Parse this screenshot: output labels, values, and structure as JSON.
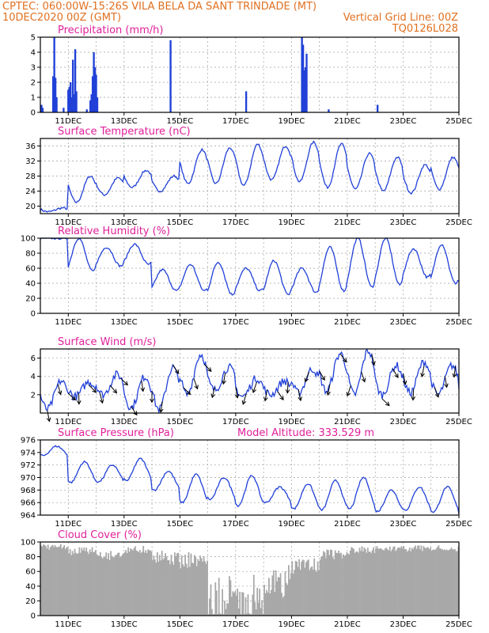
{
  "header": {
    "line1": "CPTEC:   060:00W-15:26S   VILA BELA DA SANT TRINDADE (MT)",
    "line2_left": "10DEC2020 00Z (GMT)",
    "line2_right": "Vertical Grid Line: 00Z",
    "line3_right": "TQ0126L028"
  },
  "colors": {
    "line": "#2040d8",
    "bar": "#2040d8",
    "cloud": "#a8a8a8",
    "title": "#e0209a",
    "header": "#e07020",
    "grid": "#a0a0a0"
  },
  "chart_data": [
    {
      "type": "bar",
      "title": "Precipitation (mm/h)",
      "ylim": [
        0,
        5
      ],
      "yticks": [
        0,
        1,
        2,
        3,
        4,
        5
      ],
      "xticks": [
        "11DEC",
        "13DEC",
        "15DEC",
        "17DEC",
        "19DEC",
        "21DEC",
        "23DEC",
        "25DEC"
      ],
      "time_range_hours": [
        0,
        360
      ],
      "events": [
        {
          "t": 1,
          "v": 0.5
        },
        {
          "t": 2,
          "v": 0.3
        },
        {
          "t": 11,
          "v": 2.4
        },
        {
          "t": 12,
          "v": 5.0
        },
        {
          "t": 13,
          "v": 2.3
        },
        {
          "t": 14,
          "v": 1.0
        },
        {
          "t": 20,
          "v": 0.3
        },
        {
          "t": 24,
          "v": 1.5
        },
        {
          "t": 25,
          "v": 1.7
        },
        {
          "t": 26,
          "v": 2.0
        },
        {
          "t": 27,
          "v": 1.0
        },
        {
          "t": 28,
          "v": 3.5
        },
        {
          "t": 29,
          "v": 1.2
        },
        {
          "t": 30,
          "v": 4.2
        },
        {
          "t": 31,
          "v": 1.4
        },
        {
          "t": 40,
          "v": 0.2
        },
        {
          "t": 43,
          "v": 0.8
        },
        {
          "t": 44,
          "v": 1.2
        },
        {
          "t": 45,
          "v": 2.4
        },
        {
          "t": 46,
          "v": 4.0
        },
        {
          "t": 47,
          "v": 3.0
        },
        {
          "t": 48,
          "v": 2.5
        },
        {
          "t": 49,
          "v": 1.0
        },
        {
          "t": 112,
          "v": 4.8
        },
        {
          "t": 177,
          "v": 1.4
        },
        {
          "t": 225,
          "v": 5.0
        },
        {
          "t": 226,
          "v": 4.5
        },
        {
          "t": 227,
          "v": 2.8
        },
        {
          "t": 228,
          "v": 3.0
        },
        {
          "t": 229,
          "v": 3.9
        },
        {
          "t": 248,
          "v": 0.2
        },
        {
          "t": 290,
          "v": 0.5
        }
      ]
    },
    {
      "type": "line",
      "title": "Surface Temperature (nC)",
      "ylim": [
        18,
        38
      ],
      "yticks": [
        20,
        24,
        28,
        32,
        36
      ],
      "xticks": [
        "11DEC",
        "13DEC",
        "15DEC",
        "17DEC",
        "19DEC",
        "21DEC",
        "23DEC",
        "25DEC"
      ],
      "daily_max": [
        19.5,
        28,
        27.5,
        29.5,
        28,
        35,
        35.5,
        36.5,
        36,
        37,
        36.5,
        34,
        33,
        31,
        33,
        33
      ],
      "daily_min": [
        18.5,
        21,
        23,
        25,
        24,
        26,
        26,
        25.5,
        27,
        26.5,
        25,
        24.5,
        24,
        23.5,
        24.5,
        25
      ]
    },
    {
      "type": "line",
      "title": "Relative Humidity (%)",
      "ylim": [
        0,
        100
      ],
      "yticks": [
        0,
        20,
        40,
        60,
        80,
        100
      ],
      "xticks": [
        "11DEC",
        "13DEC",
        "15DEC",
        "17DEC",
        "19DEC",
        "21DEC",
        "23DEC",
        "25DEC"
      ],
      "daily_max": [
        100,
        100,
        88,
        92,
        58,
        65,
        68,
        60,
        70,
        60,
        88,
        100,
        100,
        86,
        92,
        92
      ],
      "daily_min": [
        100,
        56,
        63,
        65,
        30,
        30,
        25,
        30,
        25,
        28,
        30,
        35,
        38,
        48,
        40,
        35
      ]
    },
    {
      "type": "line",
      "title": "Surface Wind (m/s)",
      "ylim": [
        0,
        7
      ],
      "yticks": [
        2,
        4,
        6
      ],
      "xticks": [
        "11DEC",
        "13DEC",
        "15DEC",
        "17DEC",
        "19DEC",
        "21DEC",
        "23DEC",
        "25DEC"
      ],
      "daily_max": [
        3.5,
        3.4,
        4.2,
        4.0,
        5.0,
        6.4,
        5.0,
        3.8,
        3.5,
        4.8,
        6.5,
        6.8,
        5.2,
        5.6,
        5.2,
        5.0
      ],
      "daily_min": [
        0.4,
        1.8,
        2.0,
        0.6,
        0.4,
        2.0,
        2.5,
        1.8,
        2.0,
        2.2,
        2.4,
        2.0,
        2.0,
        2.2,
        2.0,
        0.5
      ]
    },
    {
      "type": "line",
      "title": "Surface Pressure (hPa)",
      "annotation": "Model Altitude: 333.529 m",
      "ylim": [
        964,
        976
      ],
      "yticks": [
        964,
        966,
        968,
        970,
        972,
        974,
        976
      ],
      "xticks": [
        "11DEC",
        "13DEC",
        "15DEC",
        "17DEC",
        "19DEC",
        "21DEC",
        "23DEC",
        "25DEC"
      ],
      "daily_max": [
        975,
        972.5,
        972.0,
        973.0,
        971.0,
        970.5,
        970.0,
        970.3,
        968.5,
        969.0,
        969.5,
        970.0,
        968.0,
        968.5,
        968.5,
        968.0
      ],
      "daily_min": [
        973.5,
        969.2,
        969.3,
        969.5,
        968.0,
        966.0,
        966.5,
        965.5,
        966.0,
        965.0,
        964.8,
        965.0,
        964.6,
        964.8,
        964.5,
        964.0
      ]
    },
    {
      "type": "bar",
      "title": "Cloud Cover (%)",
      "ylim": [
        0,
        100
      ],
      "yticks": [
        0,
        20,
        40,
        60,
        80,
        100
      ],
      "xticks": [
        "11DEC",
        "13DEC",
        "15DEC",
        "17DEC",
        "19DEC",
        "21DEC",
        "23DEC",
        "25DEC"
      ],
      "daily_mean": [
        98,
        95,
        92,
        96,
        90,
        88,
        55,
        60,
        70,
        85,
        92,
        95,
        97,
        97,
        96,
        98
      ]
    }
  ]
}
